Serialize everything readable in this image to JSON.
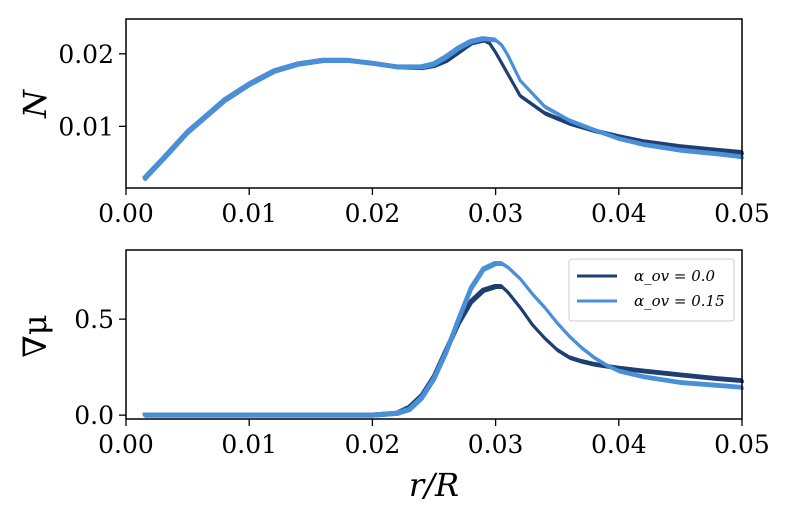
{
  "colors": {
    "alpha_0": "#1f3f73",
    "alpha_015": "#4a90d9"
  },
  "chart_data": [
    {
      "type": "line",
      "panel": "top",
      "xlabel": "",
      "ylabel": "N",
      "xlim": [
        0.0,
        0.05
      ],
      "ylim": [
        0.0015,
        0.0248
      ],
      "xticks": [
        0.0,
        0.01,
        0.02,
        0.03,
        0.04,
        0.05
      ],
      "xtick_labels": [
        "0.00",
        "0.01",
        "0.02",
        "0.03",
        "0.04",
        "0.05"
      ],
      "yticks": [
        0.01,
        0.02
      ],
      "ytick_labels": [
        "0.01",
        "0.02"
      ],
      "grid": false,
      "series": [
        {
          "legend_label": "α_ov = 0.0",
          "color": "#1f3f73",
          "x": [
            0.0015,
            0.003,
            0.005,
            0.008,
            0.01,
            0.012,
            0.014,
            0.016,
            0.018,
            0.02,
            0.022,
            0.024,
            0.025,
            0.026,
            0.027,
            0.028,
            0.029,
            0.0295,
            0.03,
            0.031,
            0.032,
            0.034,
            0.036,
            0.038,
            0.04,
            0.042,
            0.045,
            0.048,
            0.05
          ],
          "y": [
            0.0028,
            0.0055,
            0.0092,
            0.0136,
            0.0158,
            0.0176,
            0.0186,
            0.0191,
            0.0191,
            0.0187,
            0.0182,
            0.0181,
            0.0184,
            0.0191,
            0.0203,
            0.0215,
            0.0219,
            0.0215,
            0.0202,
            0.0172,
            0.0142,
            0.0118,
            0.0104,
            0.0094,
            0.0086,
            0.0079,
            0.0072,
            0.0067,
            0.0064
          ]
        },
        {
          "legend_label": "α_ov = 0.15",
          "color": "#4a90d9",
          "x": [
            0.0015,
            0.003,
            0.005,
            0.008,
            0.01,
            0.012,
            0.014,
            0.016,
            0.018,
            0.02,
            0.022,
            0.024,
            0.025,
            0.026,
            0.027,
            0.028,
            0.029,
            0.03,
            0.0305,
            0.031,
            0.032,
            0.034,
            0.036,
            0.038,
            0.04,
            0.042,
            0.045,
            0.048,
            0.05
          ],
          "y": [
            0.0028,
            0.0055,
            0.0092,
            0.0136,
            0.0158,
            0.0176,
            0.0186,
            0.0191,
            0.0191,
            0.0187,
            0.0182,
            0.0182,
            0.0186,
            0.0196,
            0.0208,
            0.0217,
            0.0221,
            0.0219,
            0.0212,
            0.0198,
            0.0163,
            0.0127,
            0.0108,
            0.0095,
            0.0083,
            0.0075,
            0.0067,
            0.0062,
            0.0058
          ]
        }
      ]
    },
    {
      "type": "line",
      "panel": "bottom",
      "xlabel": "r/R",
      "ylabel": "∇μ",
      "xlim": [
        0.0,
        0.05
      ],
      "ylim": [
        -0.02,
        0.86
      ],
      "xticks": [
        0.0,
        0.01,
        0.02,
        0.03,
        0.04,
        0.05
      ],
      "xtick_labels": [
        "0.00",
        "0.01",
        "0.02",
        "0.03",
        "0.04",
        "0.05"
      ],
      "yticks": [
        0.0,
        0.5
      ],
      "ytick_labels": [
        "0.0",
        "0.5"
      ],
      "grid": false,
      "legend": {
        "position": "top-right",
        "entries": [
          "α_ov = 0.0",
          "α_ov = 0.15"
        ]
      },
      "series": [
        {
          "legend_label": "α_ov = 0.0",
          "color": "#1f3f73",
          "x": [
            0.0015,
            0.005,
            0.01,
            0.015,
            0.02,
            0.022,
            0.023,
            0.024,
            0.025,
            0.026,
            0.027,
            0.028,
            0.029,
            0.03,
            0.0305,
            0.031,
            0.032,
            0.033,
            0.034,
            0.035,
            0.036,
            0.037,
            0.038,
            0.039,
            0.04,
            0.042,
            0.045,
            0.048,
            0.05
          ],
          "y": [
            0.0,
            0.0,
            0.0,
            0.0,
            0.0,
            0.01,
            0.04,
            0.1,
            0.2,
            0.34,
            0.48,
            0.59,
            0.65,
            0.67,
            0.67,
            0.64,
            0.56,
            0.47,
            0.4,
            0.34,
            0.3,
            0.28,
            0.265,
            0.255,
            0.245,
            0.23,
            0.21,
            0.19,
            0.18
          ]
        },
        {
          "legend_label": "α_ov = 0.15",
          "color": "#4a90d9",
          "x": [
            0.0015,
            0.005,
            0.01,
            0.015,
            0.02,
            0.022,
            0.023,
            0.024,
            0.025,
            0.026,
            0.027,
            0.028,
            0.029,
            0.03,
            0.0305,
            0.031,
            0.032,
            0.033,
            0.034,
            0.035,
            0.036,
            0.037,
            0.038,
            0.039,
            0.04,
            0.042,
            0.045,
            0.048,
            0.05
          ],
          "y": [
            0.0,
            0.0,
            0.0,
            0.0,
            0.0,
            0.01,
            0.03,
            0.09,
            0.19,
            0.33,
            0.5,
            0.66,
            0.76,
            0.79,
            0.79,
            0.77,
            0.71,
            0.63,
            0.56,
            0.48,
            0.41,
            0.35,
            0.3,
            0.26,
            0.23,
            0.2,
            0.17,
            0.155,
            0.145
          ]
        }
      ]
    }
  ]
}
